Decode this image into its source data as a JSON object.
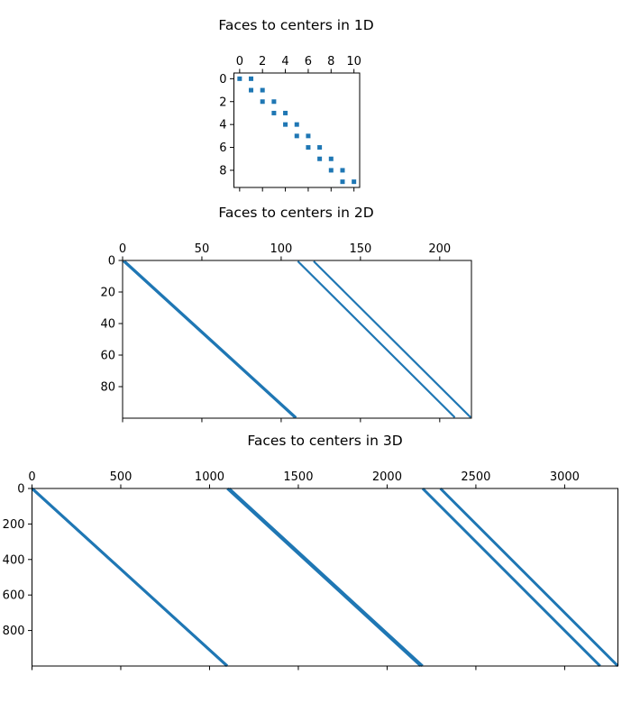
{
  "chart_data": [
    {
      "type": "spy",
      "title": "Faces to centers in 1D",
      "xlim": [
        0,
        11
      ],
      "ylim": [
        10,
        0
      ],
      "xticks": [
        0,
        2,
        4,
        6,
        8,
        10
      ],
      "xtick_labels": [
        "0",
        "2",
        "4",
        "6",
        "8",
        "10"
      ],
      "yticks": [
        0,
        2,
        4,
        6,
        8
      ],
      "ytick_labels": [
        "0",
        "2",
        "4",
        "6",
        "8"
      ],
      "bands": [
        {
          "rows": [
            0,
            9
          ],
          "col_start": 0,
          "col_end": 9
        },
        {
          "rows": [
            0,
            9
          ],
          "col_start": 1,
          "col_end": 10
        }
      ],
      "color": "#1f77b4"
    },
    {
      "type": "spy",
      "title": "Faces to centers in 2D",
      "xlim": [
        0,
        220
      ],
      "ylim": [
        100,
        0
      ],
      "xticks": [
        0,
        50,
        100,
        150,
        200
      ],
      "xtick_labels": [
        "0",
        "50",
        "100",
        "150",
        "200"
      ],
      "yticks": [
        0,
        20,
        40,
        60,
        80
      ],
      "ytick_labels": [
        "0",
        "20",
        "40",
        "60",
        "80"
      ],
      "bands": [
        {
          "rows": [
            0,
            99
          ],
          "col_start": 0,
          "col_end": 108
        },
        {
          "rows": [
            0,
            99
          ],
          "col_start": 1,
          "col_end": 109
        },
        {
          "rows": [
            0,
            99
          ],
          "col_start": 110,
          "col_end": 209
        },
        {
          "rows": [
            0,
            99
          ],
          "col_start": 120,
          "col_end": 219
        }
      ],
      "color": "#1f77b4"
    },
    {
      "type": "spy",
      "title": "Faces to centers in 3D",
      "xlim": [
        0,
        3300
      ],
      "ylim": [
        1000,
        0
      ],
      "xticks": [
        0,
        500,
        1000,
        1500,
        2000,
        2500,
        3000
      ],
      "xtick_labels": [
        "0",
        "500",
        "1000",
        "1500",
        "2000",
        "2500",
        "3000"
      ],
      "yticks": [
        0,
        200,
        400,
        600,
        800
      ],
      "ytick_labels": [
        "0",
        "200",
        "400",
        "600",
        "800"
      ],
      "bands": [
        {
          "rows": [
            0,
            999
          ],
          "col_start": 0,
          "col_end": 1098
        },
        {
          "rows": [
            0,
            999
          ],
          "col_start": 1,
          "col_end": 1099
        },
        {
          "rows": [
            0,
            999
          ],
          "col_start": 1100,
          "col_end": 2189
        },
        {
          "rows": [
            0,
            999
          ],
          "col_start": 1110,
          "col_end": 2199
        },
        {
          "rows": [
            0,
            999
          ],
          "col_start": 2200,
          "col_end": 3199
        },
        {
          "rows": [
            0,
            999
          ],
          "col_start": 2300,
          "col_end": 3299
        }
      ],
      "color": "#1f77b4"
    }
  ]
}
